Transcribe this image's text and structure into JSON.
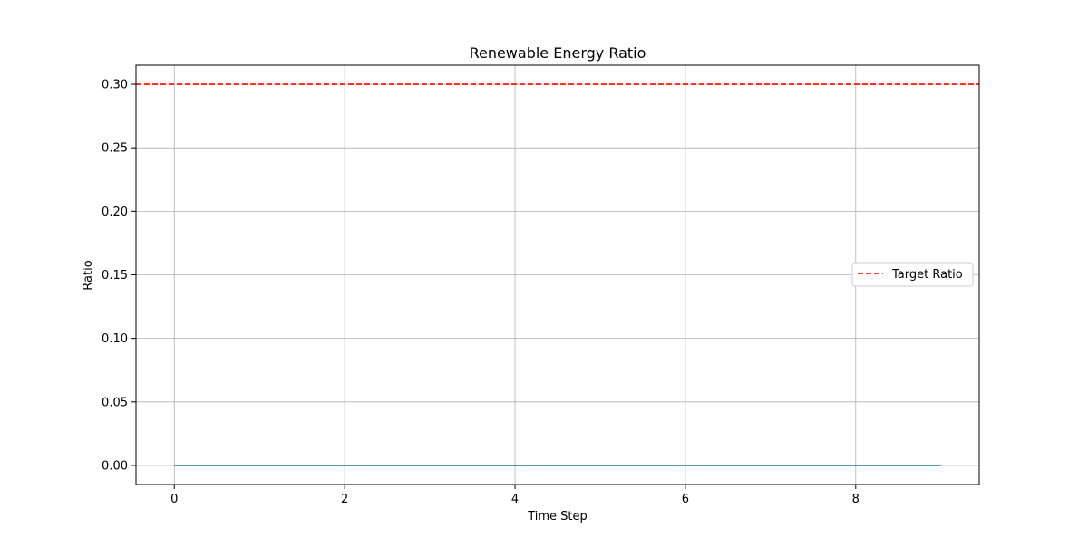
{
  "chart_data": {
    "type": "line",
    "title": "Renewable Energy Ratio",
    "xlabel": "Time Step",
    "ylabel": "Ratio",
    "xlim": [
      -0.45,
      9.45
    ],
    "ylim": [
      -0.015,
      0.315
    ],
    "x_ticks": [
      0,
      2,
      4,
      6,
      8
    ],
    "x_tick_labels": [
      "0",
      "2",
      "4",
      "6",
      "8"
    ],
    "y_ticks": [
      0.0,
      0.05,
      0.1,
      0.15,
      0.2,
      0.25,
      0.3
    ],
    "y_tick_labels": [
      "0.00",
      "0.05",
      "0.10",
      "0.15",
      "0.20",
      "0.25",
      "0.30"
    ],
    "grid": true,
    "legend": {
      "placement": "center-right",
      "entries": [
        {
          "label": "Target Ratio",
          "style": "dashed",
          "color": "#ff0000"
        }
      ]
    },
    "series": [
      {
        "color": "#1f77b4",
        "style": "solid",
        "x": [
          0,
          1,
          2,
          3,
          4,
          5,
          6,
          7,
          8,
          9
        ],
        "values": [
          0,
          0,
          0,
          0,
          0,
          0,
          0,
          0,
          0,
          0
        ]
      }
    ],
    "reference_lines": [
      {
        "name": "Target Ratio",
        "orientation": "horizontal",
        "value": 0.3,
        "color": "#ff0000",
        "style": "dashed"
      }
    ]
  },
  "colors": {
    "grid": "#b0b0b0",
    "axes": "#000000",
    "background": "#ffffff"
  }
}
